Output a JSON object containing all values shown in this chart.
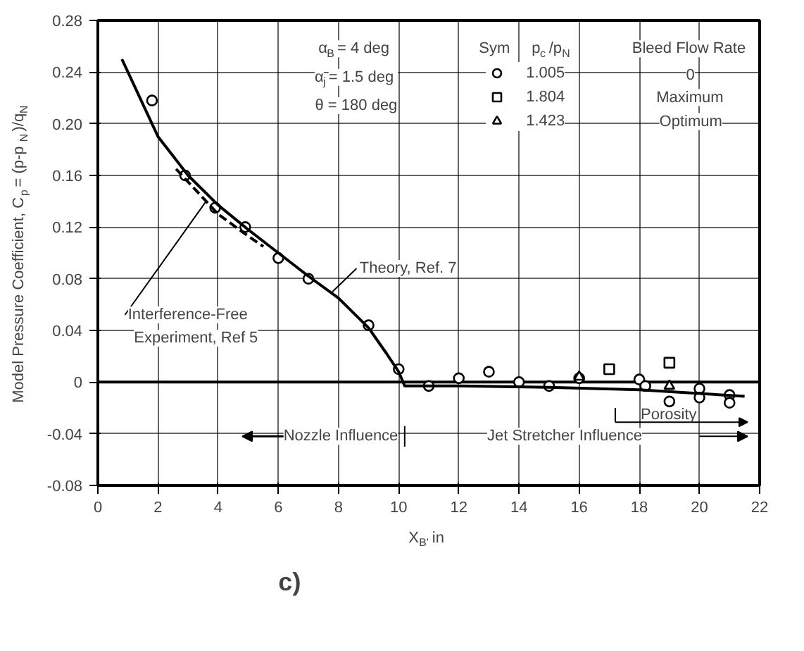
{
  "chart_data": {
    "type": "scatter",
    "xlabel": "X$_{B'}$ in",
    "ylabel": "Model Pressure Coefficient, C$_{p}$ = (p-p$_{N}$)/q$_{N}$",
    "xlim": [
      0,
      22
    ],
    "ylim": [
      -0.08,
      0.28
    ],
    "xticks": [
      0,
      2,
      4,
      6,
      8,
      10,
      12,
      14,
      16,
      18,
      20,
      22
    ],
    "yticks": [
      -0.08,
      -0.04,
      0,
      0.04,
      0.08,
      0.12,
      0.16,
      {
        "value": 0.2,
        "label": "0.20"
      },
      0.24,
      0.28
    ],
    "grid": true,
    "legend": "top right",
    "series": [
      {
        "name": "1.005",
        "color": "#000000",
        "marker": "circle",
        "x": [
          1.8,
          2.9,
          3.9,
          4.9,
          6,
          7,
          9,
          10,
          11,
          12,
          13,
          14,
          15,
          16,
          18,
          18.2,
          19,
          20,
          20,
          21,
          21
        ],
        "values": [
          0.218,
          0.16,
          0.135,
          0.12,
          0.096,
          0.08,
          0.044,
          0.01,
          -0.003,
          0.003,
          0.008,
          0.0,
          -0.003,
          0.003,
          0.002,
          -0.003,
          -0.015,
          -0.005,
          -0.012,
          -0.01,
          -0.016
        ]
      },
      {
        "name": "1.804",
        "color": "#000000",
        "marker": "square",
        "x": [
          17,
          19
        ],
        "values": [
          0.01,
          0.015
        ]
      },
      {
        "name": "1.423",
        "color": "#000000",
        "marker": "triangle",
        "x": [
          16,
          19
        ],
        "values": [
          0.004,
          -0.003
        ]
      },
      {
        "type": "line",
        "color": "#000000",
        "line_style": "solid",
        "x": [
          0.8,
          1.5,
          2,
          3,
          4,
          5,
          6,
          7,
          8,
          9,
          9.6,
          10,
          10.2,
          12,
          15,
          18,
          21.5
        ],
        "values": [
          0.25,
          0.215,
          0.19,
          0.16,
          0.137,
          0.118,
          0.1,
          0.082,
          0.065,
          0.042,
          0.022,
          0.008,
          -0.003,
          -0.003,
          -0.004,
          -0.006,
          -0.011
        ]
      },
      {
        "type": "line",
        "color": "#000000",
        "line_style": "dashed",
        "x": [
          2.6,
          3,
          4,
          5,
          5.5
        ],
        "values": [
          0.165,
          0.155,
          0.13,
          0.113,
          0.105
        ]
      }
    ],
    "annotations": [
      "α$_{B}$ = 4 deg",
      "α$_{j}$ = 1.5 deg",
      "θ = 180 deg",
      "Sym",
      "p$_{c}$/p$_{N}$",
      "Bleed Flow Rate",
      "0",
      "Maximum",
      "Optimum",
      {
        "text": "Theory, Ref. 7",
        "x": 7.8,
        "y": 0.07
      },
      {
        "text": "Interference-Free\nExperiment, Ref 5",
        "x": 3.6,
        "y": 0.14
      },
      "Nozzle Influence",
      "Jet Stretcher Influence",
      "Porosity",
      "c)"
    ]
  }
}
